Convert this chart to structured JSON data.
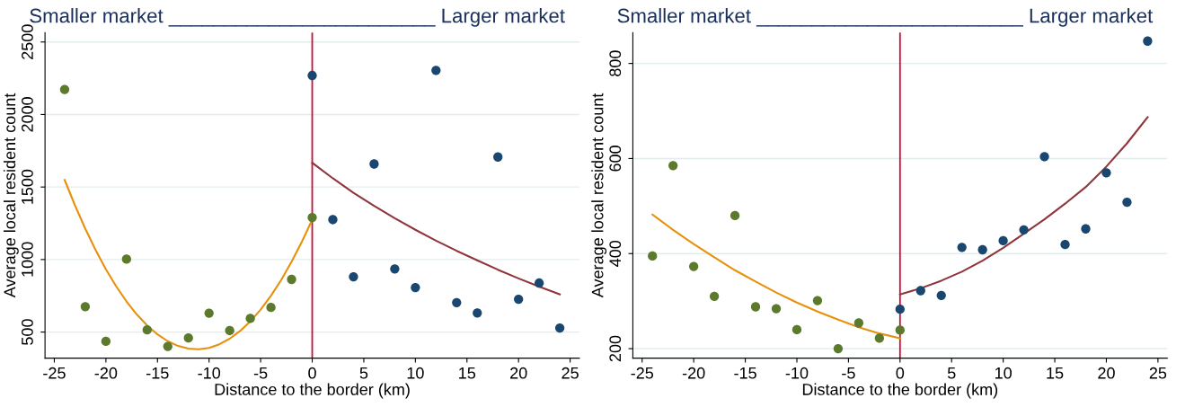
{
  "chart_data": [
    {
      "type": "scatter",
      "title": "Smaller market ________________________ Larger market",
      "xlabel": "Distance to the border (km)",
      "ylabel": "Average local resident count",
      "xlim": [
        -25.9,
        25.9
      ],
      "xticks": [
        -25,
        -20,
        -15,
        -10,
        -5,
        0,
        5,
        10,
        15,
        20,
        25
      ],
      "ylim": [
        320,
        2565
      ],
      "yticks": [
        500,
        1000,
        1500,
        2000,
        2500
      ],
      "grid": "y",
      "ref_lines": [
        {
          "axis": "x",
          "value": 0,
          "color": "#c8103c"
        }
      ],
      "series": [
        {
          "marker": "circle",
          "color": "#5b7a2b",
          "x": [
            -24,
            -22,
            -20,
            -18,
            -16,
            -14,
            -12,
            -10,
            -8,
            -6,
            -4,
            -2,
            0
          ],
          "values": [
            2172,
            675,
            436,
            1003,
            515,
            401,
            459,
            630,
            510,
            594,
            670,
            863,
            1290
          ]
        },
        {
          "marker": "circle",
          "color": "#1a476f",
          "x": [
            0,
            2,
            4,
            6,
            8,
            10,
            12,
            14,
            16,
            18,
            20,
            22,
            24
          ],
          "values": [
            2269,
            1275,
            881,
            1659,
            935,
            807,
            2304,
            703,
            632,
            1707,
            726,
            838,
            528
          ]
        },
        {
          "type": "line",
          "marker": "none",
          "color": "#e8900c",
          "x": [
            -24,
            -23,
            -22,
            -21,
            -20,
            -19,
            -18,
            -17,
            -16,
            -15,
            -14,
            -13,
            -12,
            -11,
            -10,
            -9,
            -8,
            -7,
            -6,
            -5,
            -4,
            -3,
            -2,
            -1,
            0
          ],
          "values": [
            1549,
            1374,
            1213,
            1066,
            933,
            815,
            711,
            621,
            545,
            484,
            437,
            404,
            386,
            381,
            391,
            416,
            454,
            507,
            574,
            655,
            751,
            860,
            985,
            1123,
            1275
          ]
        },
        {
          "type": "line",
          "marker": "none",
          "color": "#90353b",
          "x": [
            0,
            2,
            4,
            6,
            8,
            10,
            12,
            14,
            16,
            18,
            20,
            22,
            24
          ],
          "values": [
            1667,
            1560,
            1460,
            1370,
            1285,
            1205,
            1130,
            1060,
            995,
            930,
            870,
            813,
            760
          ]
        }
      ]
    },
    {
      "type": "scatter",
      "title": "Smaller market ________________________ Larger market",
      "xlabel": "Distance to the border (km)",
      "ylabel": "Average local resident count",
      "xlim": [
        -25.9,
        25.9
      ],
      "xticks": [
        -25,
        -20,
        -15,
        -10,
        -5,
        0,
        5,
        10,
        15,
        20,
        25
      ],
      "ylim": [
        180,
        865
      ],
      "yticks": [
        200,
        400,
        600,
        800
      ],
      "grid": "y",
      "ref_lines": [
        {
          "axis": "x",
          "value": 0,
          "color": "#c8103c"
        }
      ],
      "series": [
        {
          "marker": "circle",
          "color": "#5b7a2b",
          "x": [
            -24,
            -22,
            -20,
            -18,
            -16,
            -14,
            -12,
            -10,
            -8,
            -6,
            -4,
            -2,
            0
          ],
          "values": [
            395,
            585,
            373,
            310,
            480,
            288,
            284,
            240,
            301,
            200,
            254,
            222,
            239
          ]
        },
        {
          "marker": "circle",
          "color": "#1a476f",
          "x": [
            0,
            2,
            4,
            6,
            8,
            10,
            12,
            14,
            16,
            18,
            20,
            22,
            24
          ],
          "values": [
            283,
            322,
            312,
            413,
            408,
            427,
            450,
            604,
            419,
            452,
            570,
            508,
            847
          ]
        },
        {
          "type": "line",
          "marker": "none",
          "color": "#e8900c",
          "x": [
            -24,
            -22,
            -20,
            -18,
            -16,
            -14,
            -12,
            -10,
            -8,
            -6,
            -4,
            -2,
            0
          ],
          "values": [
            482,
            450,
            420,
            392,
            365,
            341,
            318,
            297,
            278,
            261,
            245,
            232,
            222
          ]
        },
        {
          "type": "line",
          "marker": "none",
          "color": "#90353b",
          "x": [
            0,
            2,
            4,
            6,
            8,
            10,
            12,
            14,
            16,
            18,
            20,
            22,
            24
          ],
          "values": [
            314,
            327,
            343,
            362,
            385,
            412,
            442,
            472,
            505,
            540,
            583,
            632,
            687
          ]
        }
      ]
    }
  ]
}
